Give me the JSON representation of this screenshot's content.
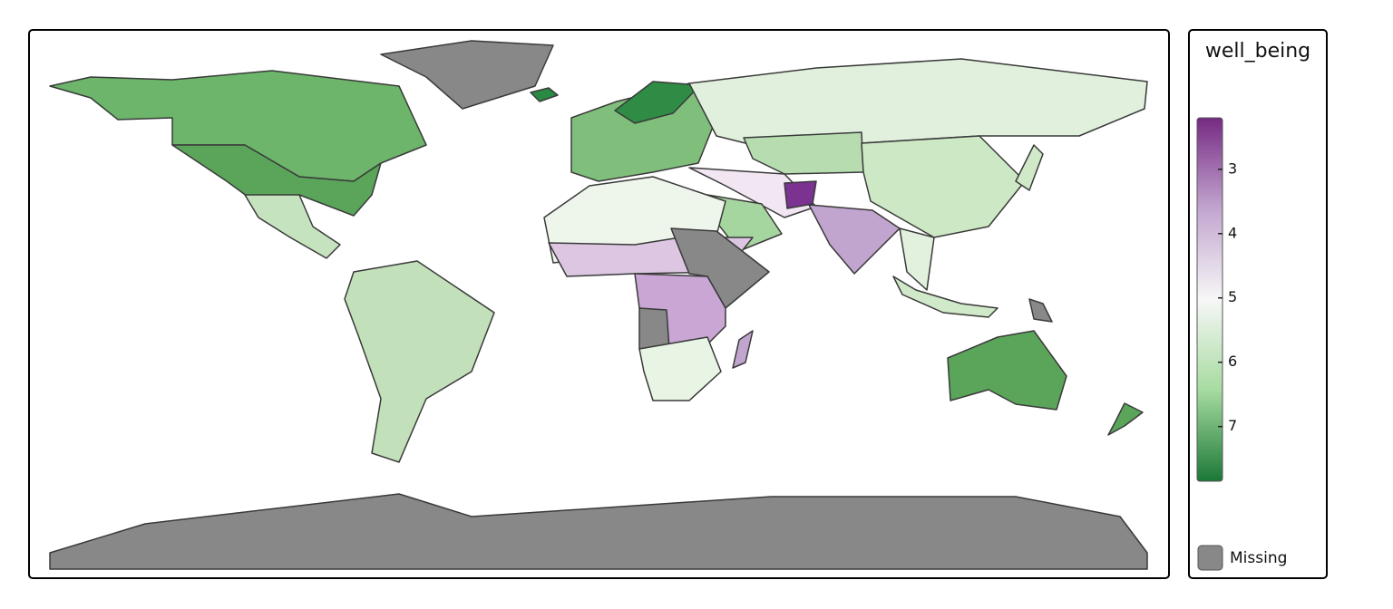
{
  "legend": {
    "title": "well_being",
    "ticks": [
      3,
      4,
      5,
      6,
      7
    ],
    "limits": [
      2.2,
      7.85
    ],
    "palette": [
      "#762a83",
      "#c2a5cf",
      "#f7f7f7",
      "#a6dba0",
      "#1b7837"
    ],
    "missing_label": "Missing",
    "missing_color": "#888888"
  }
}
